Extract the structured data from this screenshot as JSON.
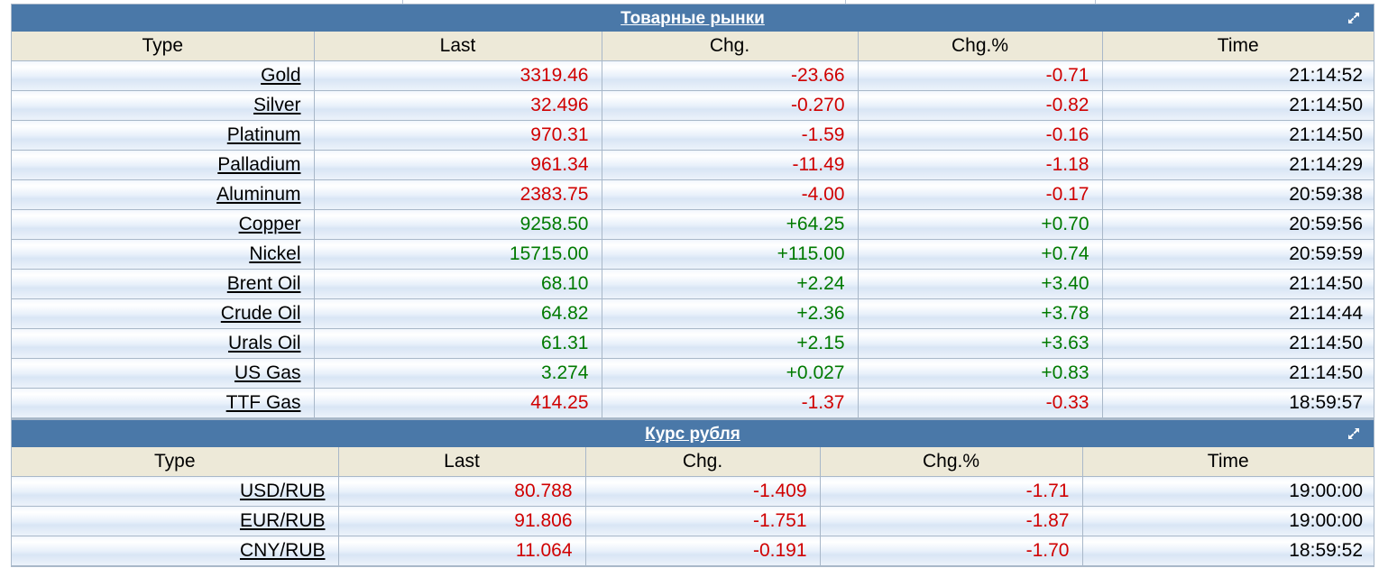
{
  "commodities": {
    "title": "Товарные рынки",
    "headers": [
      "Type",
      "Last",
      "Chg.",
      "Chg.%",
      "Time"
    ],
    "rows": [
      {
        "type": "Gold",
        "last": "3319.46",
        "chg": "-23.66",
        "pct": "-0.71",
        "time": "21:14:52",
        "dir": "neg"
      },
      {
        "type": "Silver",
        "last": "32.496",
        "chg": "-0.270",
        "pct": "-0.82",
        "time": "21:14:50",
        "dir": "neg"
      },
      {
        "type": "Platinum",
        "last": "970.31",
        "chg": "-1.59",
        "pct": "-0.16",
        "time": "21:14:50",
        "dir": "neg"
      },
      {
        "type": "Palladium",
        "last": "961.34",
        "chg": "-11.49",
        "pct": "-1.18",
        "time": "21:14:29",
        "dir": "neg"
      },
      {
        "type": "Aluminum",
        "last": "2383.75",
        "chg": "-4.00",
        "pct": "-0.17",
        "time": "20:59:38",
        "dir": "neg"
      },
      {
        "type": "Copper",
        "last": "9258.50",
        "chg": "+64.25",
        "pct": "+0.70",
        "time": "20:59:56",
        "dir": "pos"
      },
      {
        "type": "Nickel",
        "last": "15715.00",
        "chg": "+115.00",
        "pct": "+0.74",
        "time": "20:59:59",
        "dir": "pos"
      },
      {
        "type": "Brent Oil",
        "last": "68.10",
        "chg": "+2.24",
        "pct": "+3.40",
        "time": "21:14:50",
        "dir": "pos"
      },
      {
        "type": "Crude Oil",
        "last": "64.82",
        "chg": "+2.36",
        "pct": "+3.78",
        "time": "21:14:44",
        "dir": "pos"
      },
      {
        "type": "Urals Oil",
        "last": "61.31",
        "chg": "+2.15",
        "pct": "+3.63",
        "time": "21:14:50",
        "dir": "pos"
      },
      {
        "type": "US Gas",
        "last": "3.274",
        "chg": "+0.027",
        "pct": "+0.83",
        "time": "21:14:50",
        "dir": "pos"
      },
      {
        "type": "TTF Gas",
        "last": "414.25",
        "chg": "-1.37",
        "pct": "-0.33",
        "time": "18:59:57",
        "dir": "neg"
      }
    ]
  },
  "ruble": {
    "title": "Курс рубля",
    "headers": [
      "Type",
      "Last",
      "Chg.",
      "Chg.%",
      "Time"
    ],
    "rows": [
      {
        "type": "USD/RUB",
        "last": "80.788",
        "chg": "-1.409",
        "pct": "-1.71",
        "time": "19:00:00",
        "dir": "neg"
      },
      {
        "type": "EUR/RUB",
        "last": "91.806",
        "chg": "-1.751",
        "pct": "-1.87",
        "time": "19:00:00",
        "dir": "neg"
      },
      {
        "type": "CNY/RUB",
        "last": "11.064",
        "chg": "-0.191",
        "pct": "-1.70",
        "time": "18:59:52",
        "dir": "neg"
      }
    ]
  },
  "colors": {
    "header_bar": "#4a78a8",
    "column_header_bg": "#ede9d8",
    "negative": "#d00000",
    "positive": "#007a00"
  },
  "icons": {
    "expand": "expand-arrow-icon"
  }
}
